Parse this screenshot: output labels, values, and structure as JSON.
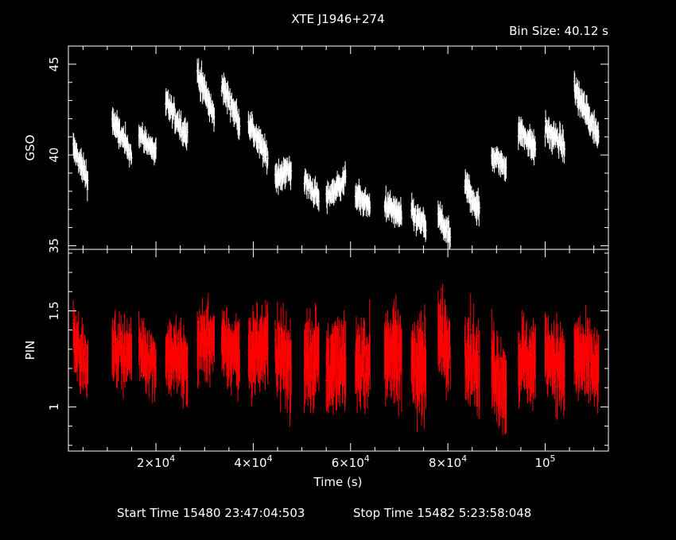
{
  "header": {
    "title": "XTE J1946+274",
    "bin_size": "Bin Size:  40.12 s"
  },
  "footer": {
    "start_time": "Start Time 15480 23:47:04:503",
    "stop_time": "Stop Time 15482  5:23:58:048"
  },
  "colors": {
    "background": "#000000",
    "axes": "#ffffff",
    "gso": "#ffffff",
    "pin": "#ff0000"
  },
  "chart_data": [
    {
      "type": "scatter",
      "panel": "top",
      "ylabel": "GSO",
      "xlim": [
        2000,
        113000
      ],
      "ylim": [
        34.8,
        46
      ],
      "yticks": [
        {
          "value": 35,
          "label": "35"
        },
        {
          "value": 40,
          "label": "40"
        },
        {
          "value": 45,
          "label": "45"
        }
      ],
      "series": [
        {
          "segments": [
            {
              "x0": 3000,
              "x1": 6000,
              "ystart": 40.4,
              "yend": 38.6,
              "err": 0.55
            },
            {
              "x0": 11000,
              "x1": 15000,
              "ystart": 41.9,
              "yend": 40.0,
              "err": 0.55
            },
            {
              "x0": 16500,
              "x1": 20000,
              "ystart": 41.2,
              "yend": 40.1,
              "err": 0.45
            },
            {
              "x0": 22000,
              "x1": 26500,
              "ystart": 42.9,
              "yend": 41.0,
              "err": 0.55
            },
            {
              "x0": 28500,
              "x1": 32000,
              "ystart": 44.6,
              "yend": 42.0,
              "err": 0.6
            },
            {
              "x0": 33500,
              "x1": 37200,
              "ystart": 43.9,
              "yend": 41.8,
              "err": 0.55
            },
            {
              "x0": 39000,
              "x1": 43000,
              "ystart": 41.8,
              "yend": 39.8,
              "err": 0.55
            },
            {
              "x0": 44500,
              "x1": 47800,
              "ystart": 38.8,
              "yend": 39.2,
              "err": 0.6
            },
            {
              "x0": 50500,
              "x1": 53500,
              "ystart": 38.6,
              "yend": 37.6,
              "err": 0.5
            },
            {
              "x0": 55000,
              "x1": 59000,
              "ystart": 37.6,
              "yend": 38.7,
              "err": 0.5
            },
            {
              "x0": 61000,
              "x1": 64000,
              "ystart": 37.9,
              "yend": 37.1,
              "err": 0.5
            },
            {
              "x0": 67000,
              "x1": 70500,
              "ystart": 37.3,
              "yend": 36.6,
              "err": 0.55
            },
            {
              "x0": 72500,
              "x1": 75500,
              "ystart": 36.8,
              "yend": 36.0,
              "err": 0.55
            },
            {
              "x0": 78000,
              "x1": 80500,
              "ystart": 36.7,
              "yend": 35.4,
              "err": 0.55
            },
            {
              "x0": 83500,
              "x1": 86500,
              "ystart": 38.3,
              "yend": 36.9,
              "err": 0.6
            },
            {
              "x0": 89000,
              "x1": 92000,
              "ystart": 39.9,
              "yend": 39.4,
              "err": 0.5
            },
            {
              "x0": 94500,
              "x1": 98000,
              "ystart": 41.4,
              "yend": 40.4,
              "err": 0.55
            },
            {
              "x0": 100000,
              "x1": 104000,
              "ystart": 41.4,
              "yend": 40.5,
              "err": 0.55
            },
            {
              "x0": 106000,
              "x1": 111000,
              "ystart": 43.6,
              "yend": 41.0,
              "err": 0.6
            }
          ]
        }
      ]
    },
    {
      "type": "scatter",
      "panel": "bottom",
      "ylabel": "PIN",
      "xlabel": "Time (s)",
      "xlim": [
        2000,
        113000
      ],
      "ylim": [
        0.77,
        1.82
      ],
      "yticks": [
        {
          "value": 1.0,
          "label": "1"
        },
        {
          "value": 1.5,
          "label": "1.5"
        }
      ],
      "xticks": [
        {
          "value": 20000,
          "mantissa": "2×10",
          "exp": "4"
        },
        {
          "value": 40000,
          "mantissa": "4×10",
          "exp": "4"
        },
        {
          "value": 60000,
          "mantissa": "6×10",
          "exp": "4"
        },
        {
          "value": 80000,
          "mantissa": "8×10",
          "exp": "4"
        },
        {
          "value": 100000,
          "mantissa": "10",
          "exp": "5"
        }
      ],
      "series": [
        {
          "segments": [
            {
              "x0": 3000,
              "x1": 6000,
              "ystart": 1.4,
              "yend": 1.18,
              "err": 0.11
            },
            {
              "x0": 11000,
              "x1": 15000,
              "ystart": 1.3,
              "yend": 1.28,
              "err": 0.11
            },
            {
              "x0": 16500,
              "x1": 20000,
              "ystart": 1.3,
              "yend": 1.22,
              "err": 0.11
            },
            {
              "x0": 22000,
              "x1": 26500,
              "ystart": 1.28,
              "yend": 1.22,
              "err": 0.12
            },
            {
              "x0": 28500,
              "x1": 32000,
              "ystart": 1.33,
              "yend": 1.35,
              "err": 0.13
            },
            {
              "x0": 33500,
              "x1": 37200,
              "ystart": 1.3,
              "yend": 1.28,
              "err": 0.13
            },
            {
              "x0": 39000,
              "x1": 43000,
              "ystart": 1.28,
              "yend": 1.32,
              "err": 0.14
            },
            {
              "x0": 44500,
              "x1": 47800,
              "ystart": 1.3,
              "yend": 1.2,
              "err": 0.16
            },
            {
              "x0": 50500,
              "x1": 53500,
              "ystart": 1.28,
              "yend": 1.24,
              "err": 0.16
            },
            {
              "x0": 55000,
              "x1": 59000,
              "ystart": 1.22,
              "yend": 1.2,
              "err": 0.15
            },
            {
              "x0": 61000,
              "x1": 64000,
              "ystart": 1.24,
              "yend": 1.22,
              "err": 0.15
            },
            {
              "x0": 67000,
              "x1": 70500,
              "ystart": 1.3,
              "yend": 1.25,
              "err": 0.16
            },
            {
              "x0": 72500,
              "x1": 75500,
              "ystart": 1.25,
              "yend": 1.2,
              "err": 0.17
            },
            {
              "x0": 78000,
              "x1": 80500,
              "ystart": 1.38,
              "yend": 1.28,
              "err": 0.15
            },
            {
              "x0": 83500,
              "x1": 86500,
              "ystart": 1.32,
              "yend": 1.18,
              "err": 0.16
            },
            {
              "x0": 89000,
              "x1": 92000,
              "ystart": 1.22,
              "yend": 1.1,
              "err": 0.16
            },
            {
              "x0": 94500,
              "x1": 98000,
              "ystart": 1.25,
              "yend": 1.22,
              "err": 0.14
            },
            {
              "x0": 100000,
              "x1": 104000,
              "ystart": 1.3,
              "yend": 1.18,
              "err": 0.14
            },
            {
              "x0": 106000,
              "x1": 111000,
              "ystart": 1.28,
              "yend": 1.18,
              "err": 0.14
            }
          ]
        }
      ]
    }
  ]
}
